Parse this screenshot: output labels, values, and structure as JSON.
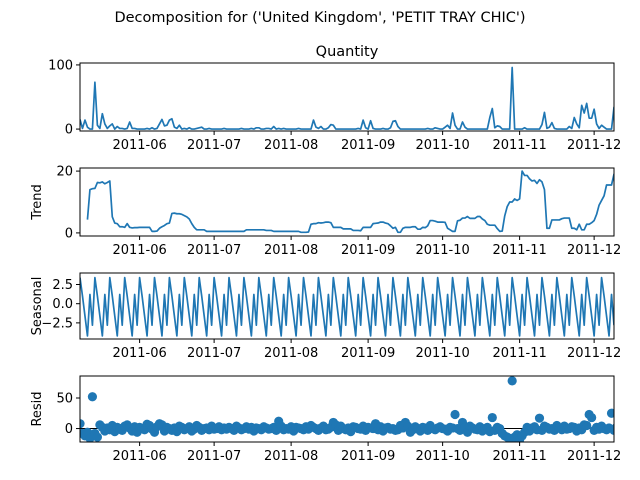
{
  "figure_title": "Decomposition for ('United Kingdom', 'PETIT TRAY CHIC')",
  "colors": {
    "series": "#1f77b4",
    "axes": "#000000",
    "background": "#ffffff"
  },
  "chart_data": [
    {
      "type": "line",
      "title": "Quantity",
      "xlabel": "",
      "ylabel": "",
      "x_start": "2011-05-08",
      "x_end": "2011-12-09",
      "xlim": [
        "2011-05-08",
        "2011-12-09"
      ],
      "x_ticks": [
        "2011-06-01",
        "2011-07-01",
        "2011-08-01",
        "2011-09-01",
        "2011-10-01",
        "2011-11-01",
        "2011-12-01"
      ],
      "x_tick_labels": [
        "2011-06",
        "2011-07",
        "2011-08",
        "2011-09",
        "2011-10",
        "2011-11",
        "2011-12"
      ],
      "ylim": [
        -3,
        103
      ],
      "y_ticks": [
        0,
        100
      ],
      "y_tick_labels": [
        "0",
        "100"
      ],
      "grid": false,
      "legend": "none",
      "values": [
        15,
        1,
        14,
        3,
        0,
        0,
        73,
        6,
        1,
        24,
        8,
        1,
        5,
        8,
        0,
        4,
        1,
        1,
        0,
        1,
        11,
        1,
        1,
        0,
        0,
        0,
        0,
        1,
        0,
        2,
        0,
        1,
        8,
        15,
        5,
        6,
        14,
        16,
        3,
        1,
        6,
        0,
        1,
        0,
        2,
        0,
        0,
        1,
        2,
        3,
        0,
        0,
        1,
        0,
        0,
        0,
        0,
        0,
        1,
        0,
        0,
        0,
        0,
        0,
        0,
        1,
        0,
        0,
        0,
        1,
        0,
        2,
        2,
        0,
        0,
        1,
        1,
        0,
        4,
        0,
        1,
        0,
        1,
        0,
        0,
        0,
        0,
        0,
        1,
        0,
        0,
        0,
        0,
        0,
        14,
        3,
        1,
        4,
        0,
        0,
        2,
        7,
        6,
        0,
        0,
        0,
        0,
        0,
        0,
        0,
        0,
        0,
        1,
        0,
        14,
        2,
        0,
        13,
        1,
        0,
        0,
        0,
        1,
        0,
        0,
        2,
        12,
        13,
        4,
        0,
        0,
        0,
        0,
        0,
        0,
        0,
        0,
        0,
        0,
        0,
        1,
        0,
        0,
        2,
        1,
        0,
        0,
        3,
        6,
        1,
        25,
        6,
        0,
        0,
        11,
        3,
        0,
        0,
        0,
        0,
        0,
        0,
        0,
        0,
        0,
        18,
        32,
        2,
        5,
        4,
        0,
        0,
        0,
        0,
        96,
        0,
        0,
        0,
        0,
        2,
        0,
        0,
        0,
        0,
        0,
        0,
        7,
        26,
        1,
        3,
        10,
        1,
        0,
        0,
        0,
        0,
        0,
        4,
        1,
        18,
        8,
        2,
        37,
        25,
        40,
        17,
        17,
        31,
        8,
        1,
        6,
        3,
        0,
        0,
        0,
        34,
        0,
        1,
        1,
        0,
        0,
        2,
        0,
        5,
        2,
        0,
        7,
        2,
        13,
        1,
        0,
        0,
        3,
        20,
        21,
        7,
        4,
        0,
        5,
        0,
        9,
        2,
        2,
        4,
        0,
        0,
        3,
        1,
        3,
        2,
        0,
        1,
        1
      ]
    },
    {
      "type": "line",
      "title": "",
      "xlabel": "",
      "ylabel": "Trend",
      "x_start": "2011-05-11",
      "x_end": "2011-12-06",
      "xlim": [
        "2011-05-08",
        "2011-12-09"
      ],
      "x_ticks": [
        "2011-06-01",
        "2011-07-01",
        "2011-08-01",
        "2011-09-01",
        "2011-10-01",
        "2011-11-01",
        "2011-12-01"
      ],
      "x_tick_labels": [
        "2011-06",
        "2011-07",
        "2011-08",
        "2011-09",
        "2011-10",
        "2011-11",
        "2011-12"
      ],
      "ylim": [
        -1,
        21
      ],
      "y_ticks": [
        0,
        20
      ],
      "y_tick_labels": [
        "0",
        "20"
      ],
      "grid": false,
      "legend": "none",
      "values": [
        4.3,
        14,
        14.3,
        14.4,
        16.3,
        16.2,
        16.5,
        15.9,
        16.3,
        16.8,
        5.2,
        3.2,
        3.0,
        2.0,
        2.0,
        1.8,
        3.0,
        1.8,
        1.6,
        1.7,
        1.7,
        1.8,
        1.8,
        1.8,
        1.8,
        1.8,
        0.5,
        0.5,
        0.6,
        1.5,
        2.0,
        2.4,
        3.0,
        3.2,
        6.3,
        6.4,
        6.2,
        6.2,
        6.0,
        5.6,
        5.2,
        4.5,
        3.0,
        1.8,
        1.0,
        1.0,
        1.0,
        1.0,
        0.5,
        0.5,
        0.5,
        0.5,
        0.5,
        0.5,
        0.5,
        0.5,
        0.5,
        0.5,
        0.5,
        0.5,
        0.5,
        0.5,
        0.5,
        0.5,
        1.0,
        1.0,
        1.0,
        1.0,
        1.0,
        1.0,
        1.0,
        1.0,
        0.8,
        0.8,
        0.8,
        0.5,
        0.5,
        0.5,
        0.5,
        0.5,
        0.5,
        0.5,
        0.5,
        0.5,
        0.5,
        0.5,
        0.2,
        0.2,
        0.2,
        0.3,
        2.8,
        3.0,
        3.0,
        3.3,
        3.2,
        3.3,
        3.5,
        3.5,
        3.3,
        1.8,
        1.8,
        1.8,
        1.8,
        1.3,
        1.3,
        1.3,
        1.3,
        0.8,
        0.8,
        0.8,
        0.7,
        1.8,
        1.8,
        1.8,
        1.8,
        3.0,
        3.1,
        3.2,
        3.5,
        3.5,
        3.2,
        3.0,
        2.3,
        1.5,
        1.8,
        0.2,
        0.2,
        1.5,
        1.8,
        1.8,
        1.8,
        2.0,
        2.0,
        1.2,
        1.2,
        1.8,
        1.7,
        2.3,
        4.0,
        4.0,
        3.8,
        3.5,
        3.5,
        3.5,
        3.4,
        1.5,
        1.0,
        0.5,
        0.5,
        3.9,
        4.1,
        4.8,
        4.8,
        5.3,
        4.7,
        4.7,
        4.7,
        5.3,
        5.3,
        4.5,
        4.0,
        2.8,
        2.5,
        2.5,
        2.5,
        1.4,
        0.5,
        0.6,
        5.5,
        8.5,
        10.0,
        10.0,
        11.0,
        10.5,
        11.0,
        20.0,
        18.6,
        18.6,
        17.5,
        16.8,
        17.0,
        16.0,
        17.2,
        16.5,
        14.0,
        1.5,
        1.5,
        4.2,
        4.2,
        4.2,
        4.2,
        4.6,
        4.8,
        4.8,
        4.8,
        1.5,
        1.5,
        1.0,
        2.8,
        1.0,
        1.0,
        2.8,
        2.8,
        3.3,
        4.0,
        6.0,
        9.0,
        10.5,
        12.0,
        15.5,
        15.5,
        15.5,
        19.0,
        19.0,
        18.4,
        17.0,
        16.0,
        14.5,
        12.0,
        14.3,
        12.5,
        11.6,
        11.0,
        11.0,
        10.0,
        7.5,
        6.0,
        5.0,
        1.6,
        3.2,
        3.5,
        3.8,
        4.3,
        5.3,
        7.3,
        8.0,
        7.5,
        7.5,
        7.0,
        6.5,
        6.0,
        6.3,
        6.3,
        6.0,
        4.6,
        4.3,
        4.5,
        5.0,
        4.5,
        4.0,
        3.5,
        2.5,
        1.5,
        1.2,
        1.0
      ]
    },
    {
      "type": "line",
      "title": "",
      "xlabel": "",
      "ylabel": "Seasonal",
      "x_start": "2011-05-08",
      "x_end": "2011-12-09",
      "xlim": [
        "2011-05-08",
        "2011-12-09"
      ],
      "x_ticks": [
        "2011-06-01",
        "2011-07-01",
        "2011-08-01",
        "2011-09-01",
        "2011-10-01",
        "2011-11-01",
        "2011-12-01"
      ],
      "x_tick_labels": [
        "2011-06",
        "2011-07",
        "2011-08",
        "2011-09",
        "2011-10",
        "2011-11",
        "2011-12"
      ],
      "ylim": [
        -4.6,
        4.0
      ],
      "y_ticks": [
        -2.5,
        0.0,
        2.5
      ],
      "y_tick_labels": [
        "−2.5",
        "0.0",
        "2.5"
      ],
      "grid": false,
      "legend": "none",
      "period": 6,
      "pattern": [
        3.4,
        1.0,
        -1.6,
        -4.2,
        1.2,
        -2.8
      ]
    },
    {
      "type": "scatter",
      "title": "",
      "xlabel": "",
      "ylabel": "Resid",
      "x_start": "2011-05-08",
      "x_end": "2011-12-09",
      "xlim": [
        "2011-05-08",
        "2011-12-09"
      ],
      "x_ticks": [
        "2011-06-01",
        "2011-07-01",
        "2011-08-01",
        "2011-09-01",
        "2011-10-01",
        "2011-11-01",
        "2011-12-01"
      ],
      "x_tick_labels": [
        "2011-06",
        "2011-07",
        "2011-08",
        "2011-09",
        "2011-10",
        "2011-11",
        "2011-12"
      ],
      "ylim": [
        -22,
        86
      ],
      "y_ticks": [
        0,
        50
      ],
      "y_tick_labels": [
        "0",
        "50"
      ],
      "grid": false,
      "legend": "none",
      "baseline": 0,
      "values": [
        8,
        -8,
        -12,
        -6,
        -16,
        52,
        -8,
        -14,
        6,
        2,
        -4,
        1,
        -2,
        5,
        -5,
        2,
        0,
        -3,
        4,
        6,
        1,
        -4,
        3,
        -6,
        2,
        0,
        -2,
        7,
        5,
        -1,
        -6,
        3,
        8,
        6,
        -4,
        2,
        0,
        -3,
        1,
        -5,
        4,
        2,
        -2,
        0,
        3,
        -4,
        -1,
        5,
        2,
        -3,
        0,
        1,
        -2,
        4,
        -1,
        0,
        3,
        -2,
        1,
        -1,
        2,
        0,
        -3,
        4,
        1,
        -2,
        0,
        3,
        -1,
        2,
        -4,
        1,
        0,
        -2,
        3,
        1,
        -1,
        0,
        2,
        -3,
        12,
        4,
        -2,
        0,
        -1,
        3,
        -4,
        2,
        1,
        0,
        -2,
        3,
        -1,
        5,
        2,
        0,
        -3,
        1,
        4,
        -2,
        -1,
        2,
        10,
        6,
        -3,
        4,
        0,
        -2,
        1,
        -5,
        3,
        2,
        0,
        -1,
        4,
        -3,
        2,
        1,
        0,
        8,
        -2,
        3,
        -4,
        1,
        2,
        -1,
        0,
        -3,
        -2,
        5,
        1,
        10,
        4,
        -6,
        -2,
        3,
        0,
        -4,
        2,
        1,
        -3,
        5,
        0,
        -2,
        1,
        3,
        0,
        -1,
        -4,
        2,
        1,
        23,
        0,
        -3,
        10,
        2,
        -6,
        4,
        1,
        -1,
        -2,
        3,
        -4,
        0,
        2,
        -5,
        18,
        -3,
        2,
        0,
        -8,
        -12,
        -14,
        -16,
        78,
        -14,
        -10,
        -18,
        -12,
        -6,
        2,
        -4,
        1,
        3,
        -2,
        17,
        -3,
        4,
        2,
        -1,
        0,
        -3,
        5,
        1,
        -2,
        4,
        -1,
        0,
        3,
        2,
        -4,
        1,
        -2,
        6,
        5,
        23,
        18,
        -3,
        2,
        -1,
        4,
        0,
        -2,
        1,
        25,
        -3,
        2,
        0,
        -1,
        3,
        -4,
        -2,
        0,
        1,
        4,
        -3,
        8,
        2,
        -1,
        0,
        12,
        3,
        -2,
        1,
        0,
        -4,
        2,
        1,
        3,
        -1,
        0,
        2,
        -2,
        1,
        -3,
        0,
        2,
        -1,
        1,
        0,
        3,
        -2,
        1,
        0,
        2,
        -1
      ]
    }
  ]
}
